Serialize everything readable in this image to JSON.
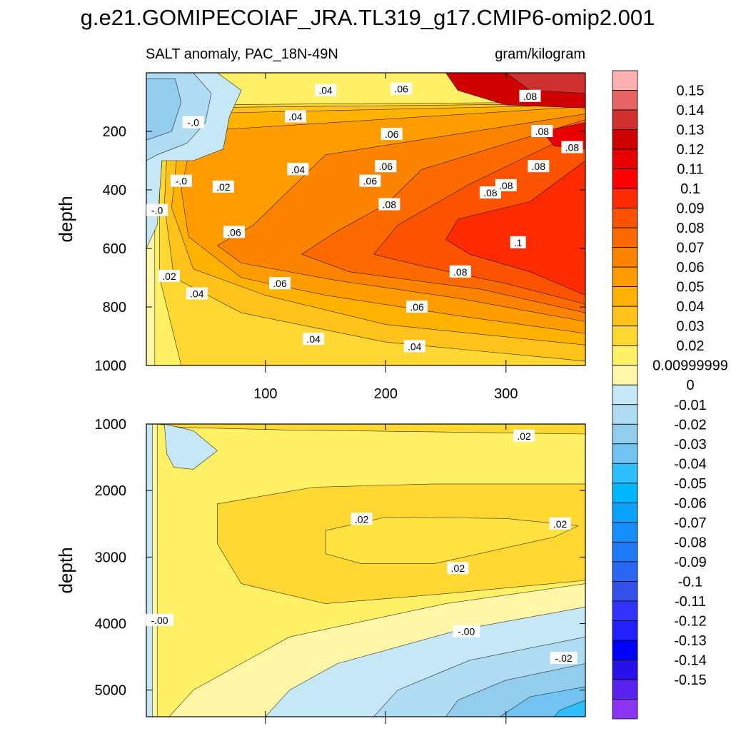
{
  "chart_data": {
    "type": "heatmap",
    "title": "g.e21.GOMIPECOIAF_JRA.TL319_g17.CMIP6-omip2.001",
    "subtitle_left": "SALT anomaly, PAC_18N-49N",
    "subtitle_right": "gram/kilogram",
    "x": {
      "range": [
        1,
        366
      ],
      "ticks": [
        100,
        200,
        300
      ],
      "tick_labels": [
        "100",
        "200",
        "300"
      ]
    },
    "panels": [
      {
        "name": "upper",
        "ylabel": "depth",
        "ylim": [
          1000,
          0
        ],
        "yticks": [
          200,
          400,
          600,
          800,
          1000
        ],
        "ytick_labels": [
          "200",
          "400",
          "600",
          "800",
          "1000"
        ],
        "contour_labels": [
          {
            "x": 150,
            "y": 60,
            "text": ".04"
          },
          {
            "x": 213,
            "y": 55,
            "text": ".06"
          },
          {
            "x": 320,
            "y": 80,
            "text": ".08"
          },
          {
            "x": 40,
            "y": 170,
            "text": "-.0"
          },
          {
            "x": 125,
            "y": 150,
            "text": ".04"
          },
          {
            "x": 205,
            "y": 210,
            "text": ".06"
          },
          {
            "x": 330,
            "y": 200,
            "text": ".08"
          },
          {
            "x": 355,
            "y": 255,
            "text": ".08"
          },
          {
            "x": 30,
            "y": 370,
            "text": "-.0"
          },
          {
            "x": 65,
            "y": 390,
            "text": ".02"
          },
          {
            "x": 127,
            "y": 330,
            "text": ".04"
          },
          {
            "x": 187,
            "y": 370,
            "text": ".06"
          },
          {
            "x": 200,
            "y": 320,
            "text": ".06"
          },
          {
            "x": 203,
            "y": 450,
            "text": ".08"
          },
          {
            "x": 287,
            "y": 410,
            "text": ".08"
          },
          {
            "x": 300,
            "y": 385,
            "text": ".08"
          },
          {
            "x": 327,
            "y": 320,
            "text": ".08"
          },
          {
            "x": 10,
            "y": 470,
            "text": "-.0"
          },
          {
            "x": 74,
            "y": 545,
            "text": ".06"
          },
          {
            "x": 310,
            "y": 580,
            "text": ".1"
          },
          {
            "x": 262,
            "y": 680,
            "text": ".08"
          },
          {
            "x": 20,
            "y": 695,
            "text": ".02"
          },
          {
            "x": 43,
            "y": 755,
            "text": ".04"
          },
          {
            "x": 112,
            "y": 720,
            "text": ".06"
          },
          {
            "x": 226,
            "y": 800,
            "text": ".06"
          },
          {
            "x": 140,
            "y": 910,
            "text": ".04"
          },
          {
            "x": 224,
            "y": 935,
            "text": ".04"
          }
        ]
      },
      {
        "name": "lower",
        "ylabel": "depth",
        "ylim": [
          5400,
          1000
        ],
        "yticks": [
          1000,
          2000,
          3000,
          4000,
          5000
        ],
        "ytick_labels": [
          "1000",
          "2000",
          "3000",
          "4000",
          "5000"
        ],
        "contour_labels": [
          {
            "x": 315,
            "y": 1180,
            "text": ".02"
          },
          {
            "x": 180,
            "y": 2430,
            "text": ".02"
          },
          {
            "x": 345,
            "y": 2500,
            "text": ".02"
          },
          {
            "x": 260,
            "y": 3170,
            "text": ".02"
          },
          {
            "x": 12,
            "y": 3950,
            "text": "-.00"
          },
          {
            "x": 267,
            "y": 4120,
            "text": "-.00"
          },
          {
            "x": 348,
            "y": 4520,
            "text": "-.02"
          }
        ]
      }
    ],
    "colorbar": {
      "colors": [
        "#ffb1b1",
        "#e66464",
        "#d03030",
        "#cf0000",
        "#e60000",
        "#ff0000",
        "#ff2a00",
        "#fd5300",
        "#fd6b00",
        "#fd8400",
        "#ff9d00",
        "#ffb200",
        "#ffc31b",
        "#ffd733",
        "#fff066",
        "#fff7a7",
        "#c6e8f6",
        "#b0dcf3",
        "#92cdee",
        "#72c3f1",
        "#30bffd",
        "#00b6fe",
        "#0aa3fc",
        "#158dfa",
        "#1f7af7",
        "#2866f3",
        "#3250e8",
        "#3333ff",
        "#2121ff",
        "#0000ff",
        "#2a10e8",
        "#5a22ef",
        "#8a33f5"
      ],
      "labels": [
        "0.15",
        "0.14",
        "0.13",
        "0.12",
        "0.11",
        "0.1",
        "0.09",
        "0.08",
        "0.07",
        "0.06",
        "0.05",
        "0.04",
        "0.03",
        "0.02",
        "0.00999999",
        "0",
        "-0.01",
        "-0.02",
        "-0.03",
        "-0.04",
        "-0.05",
        "-0.06",
        "-0.07",
        "-0.08",
        "-0.09",
        "-0.1",
        "-0.11",
        "-0.12",
        "-0.13",
        "-0.14",
        "-0.15"
      ]
    },
    "bands": {
      "upper": [
        {
          "level": 0.01,
          "color": "#fff066",
          "pts": [
            [
              8,
              0
            ],
            [
              366,
              0
            ],
            [
              366,
              1000
            ],
            [
              8,
              1000
            ]
          ]
        },
        {
          "level": 0.02,
          "color": "#ffd733",
          "pts": [
            [
              18,
              110
            ],
            [
              366,
              100
            ],
            [
              366,
              1000
            ],
            [
              30,
              1000
            ],
            [
              12,
              700
            ],
            [
              12,
              400
            ]
          ]
        },
        {
          "level": 0.03,
          "color": "#ffc31b",
          "pts": [
            [
              20,
              120
            ],
            [
              366,
              105
            ],
            [
              366,
              985
            ],
            [
              200,
              920
            ],
            [
              80,
              820
            ],
            [
              24,
              700
            ],
            [
              16,
              450
            ]
          ]
        },
        {
          "level": 0.04,
          "color": "#ffb200",
          "pts": [
            [
              30,
              140
            ],
            [
              366,
              110
            ],
            [
              366,
              930
            ],
            [
              200,
              860
            ],
            [
              100,
              760
            ],
            [
              40,
              670
            ],
            [
              22,
              460
            ]
          ]
        },
        {
          "level": 0.05,
          "color": "#ff9d00",
          "pts": [
            [
              40,
              200
            ],
            [
              366,
              115
            ],
            [
              366,
              890
            ],
            [
              260,
              830
            ],
            [
              150,
              760
            ],
            [
              80,
              700
            ],
            [
              36,
              560
            ],
            [
              30,
              400
            ]
          ]
        },
        {
          "level": 0.06,
          "color": "#fd8400",
          "pts": [
            [
              150,
              280
            ],
            [
              366,
              140
            ],
            [
              366,
              850
            ],
            [
              260,
              770
            ],
            [
              160,
              710
            ],
            [
              80,
              650
            ],
            [
              60,
              590
            ],
            [
              90,
              520
            ]
          ]
        },
        {
          "level": 0.07,
          "color": "#fd6b00",
          "pts": [
            [
              230,
              330
            ],
            [
              366,
              160
            ],
            [
              366,
              820
            ],
            [
              280,
              740
            ],
            [
              170,
              680
            ],
            [
              130,
              620
            ],
            [
              160,
              540
            ],
            [
              200,
              450
            ]
          ]
        },
        {
          "level": 0.08,
          "color": "#fd5300",
          "pts": [
            [
              270,
              380
            ],
            [
              366,
              190
            ],
            [
              366,
              790
            ],
            [
              300,
              720
            ],
            [
              230,
              660
            ],
            [
              190,
              620
            ],
            [
              210,
              520
            ]
          ]
        },
        {
          "level": 0.09,
          "color": "#ff2a00",
          "pts": [
            [
              320,
              440
            ],
            [
              366,
              300
            ],
            [
              366,
              760
            ],
            [
              320,
              680
            ],
            [
              270,
              620
            ],
            [
              250,
              570
            ],
            [
              260,
              500
            ]
          ]
        },
        {
          "level": 0.1,
          "color": "#e60000",
          "pts": [
            [
              330,
              200
            ],
            [
              366,
              170
            ],
            [
              366,
              260
            ],
            [
              340,
              250
            ]
          ]
        },
        {
          "level": 0.11,
          "color": "#cf0000",
          "pts": [
            [
              250,
              0
            ],
            [
              366,
              0
            ],
            [
              366,
              120
            ],
            [
              300,
              110
            ],
            [
              260,
              60
            ]
          ]
        },
        {
          "level": 0.12,
          "color": "#d03030",
          "pts": [
            [
              300,
              0
            ],
            [
              366,
              0
            ],
            [
              366,
              70
            ],
            [
              320,
              60
            ]
          ]
        },
        {
          "level": -0.01,
          "color": "#c6e8f6",
          "pts": [
            [
              1,
              0
            ],
            [
              60,
              0
            ],
            [
              80,
              60
            ],
            [
              70,
              150
            ],
            [
              65,
              260
            ],
            [
              40,
              300
            ],
            [
              14,
              300
            ],
            [
              10,
              520
            ],
            [
              1,
              600
            ]
          ]
        },
        {
          "level": -0.02,
          "color": "#b0dcf3",
          "pts": [
            [
              1,
              0
            ],
            [
              40,
              0
            ],
            [
              55,
              70
            ],
            [
              50,
              170
            ],
            [
              35,
              240
            ],
            [
              10,
              280
            ],
            [
              1,
              300
            ]
          ]
        },
        {
          "level": -0.03,
          "color": "#92cdee",
          "pts": [
            [
              1,
              20
            ],
            [
              25,
              20
            ],
            [
              30,
              100
            ],
            [
              22,
              200
            ],
            [
              1,
              230
            ]
          ]
        }
      ],
      "lower": [
        {
          "level": 0.01,
          "color": "#fff066",
          "pts": [
            [
              10,
              1000
            ],
            [
              366,
              1000
            ],
            [
              366,
              3400
            ],
            [
              250,
              3700
            ],
            [
              120,
              4200
            ],
            [
              40,
              5000
            ],
            [
              20,
              5400
            ],
            [
              10,
              5400
            ]
          ]
        },
        {
          "level": 0.02,
          "color": "#ffd733",
          "pts": [
            [
              60,
              2200
            ],
            [
              140,
              1950
            ],
            [
              240,
              1900
            ],
            [
              350,
              1900
            ],
            [
              366,
              1900
            ],
            [
              366,
              3350
            ],
            [
              250,
              3550
            ],
            [
              150,
              3700
            ],
            [
              80,
              3400
            ],
            [
              60,
              2800
            ]
          ]
        },
        {
          "level": 0.03,
          "color": "#ffe340",
          "pts": [
            [
              150,
              2600
            ],
            [
              200,
              2400
            ],
            [
              300,
              2420
            ],
            [
              360,
              2530
            ],
            [
              340,
              2700
            ],
            [
              240,
              3100
            ],
            [
              180,
              3100
            ],
            [
              150,
              2950
            ]
          ]
        },
        {
          "level": 0.02,
          "color": "#ffd733",
          "pts": [
            [
              10,
              1000
            ],
            [
              366,
              1000
            ],
            [
              366,
              1150
            ],
            [
              250,
              1120
            ],
            [
              120,
              1090
            ],
            [
              30,
              1050
            ]
          ]
        },
        {
          "level": -0.01,
          "color": "#c6e8f6",
          "pts": [
            [
              366,
              3750
            ],
            [
              260,
              4100
            ],
            [
              160,
              4600
            ],
            [
              120,
              5000
            ],
            [
              100,
              5400
            ],
            [
              366,
              5400
            ]
          ]
        },
        {
          "level": -0.02,
          "color": "#b0dcf3",
          "pts": [
            [
              366,
              4200
            ],
            [
              270,
              4550
            ],
            [
              210,
              5000
            ],
            [
              190,
              5400
            ],
            [
              366,
              5400
            ]
          ]
        },
        {
          "level": -0.03,
          "color": "#92cdee",
          "pts": [
            [
              366,
              4600
            ],
            [
              300,
              4850
            ],
            [
              260,
              5150
            ],
            [
              250,
              5400
            ],
            [
              366,
              5400
            ]
          ]
        },
        {
          "level": -0.04,
          "color": "#72c3f1",
          "pts": [
            [
              366,
              4950
            ],
            [
              320,
              5100
            ],
            [
              295,
              5400
            ],
            [
              366,
              5400
            ]
          ]
        },
        {
          "level": -0.05,
          "color": "#30bffd",
          "pts": [
            [
              366,
              5150
            ],
            [
              345,
              5300
            ],
            [
              340,
              5400
            ],
            [
              366,
              5400
            ]
          ]
        },
        {
          "level": -0.01,
          "color": "#c6e8f6",
          "pts": [
            [
              1,
              1000
            ],
            [
              6,
              1000
            ],
            [
              6,
              5400
            ],
            [
              1,
              5400
            ]
          ]
        },
        {
          "level": -0.01,
          "color": "#c6e8f6",
          "pts": [
            [
              16,
              1000
            ],
            [
              40,
              1100
            ],
            [
              60,
              1400
            ],
            [
              40,
              1680
            ],
            [
              24,
              1650
            ],
            [
              18,
              1450
            ]
          ]
        }
      ]
    }
  }
}
